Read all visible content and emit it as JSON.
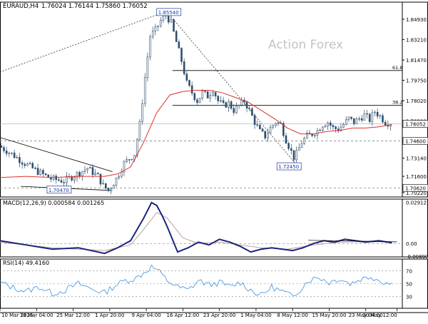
{
  "header": {
    "symbol": "EURAUD,H4",
    "ohlc": "1.76024 1.76144 1.75860 1.76052"
  },
  "watermark": "Action Forex",
  "chart_data": [
    {
      "type": "candlestick",
      "panel": "price",
      "ylim": [
        1.6985,
        1.8638
      ],
      "y_ticks": [
        "1.84930",
        "1.83210",
        "1.81470",
        "1.79750",
        "1.78020",
        "1.76290",
        "1.74560",
        "1.73140",
        "1.71600",
        "1.70220"
      ],
      "y_ticks_values": [
        1.8493,
        1.8321,
        1.8147,
        1.7975,
        1.7802,
        1.7629,
        1.7456,
        1.7314,
        1.716,
        1.7022
      ],
      "price_label": "1.76052",
      "price": 1.76052,
      "levels": [
        {
          "label": "1.74600",
          "value": 1.746,
          "style": "dashed"
        },
        {
          "label": "1.70620",
          "value": 1.7062,
          "style": "dashed"
        }
      ],
      "fib_levels": [
        {
          "label": "61.8",
          "value": 1.8058
        },
        {
          "label": "38.2",
          "value": 1.7762
        }
      ],
      "annotations": [
        {
          "label": "1.85540",
          "value": 1.8554
        },
        {
          "label": "1.72450",
          "value": 1.7245
        },
        {
          "label": "1.70470",
          "value": 1.7047
        }
      ],
      "close_path": [
        [
          0,
          1.742
        ],
        [
          5,
          1.735
        ],
        [
          10,
          1.727
        ],
        [
          15,
          1.72
        ],
        [
          20,
          1.714
        ],
        [
          25,
          1.712
        ],
        [
          30,
          1.718
        ],
        [
          34,
          1.723
        ],
        [
          38,
          1.716
        ],
        [
          40,
          1.708
        ],
        [
          42,
          1.704
        ],
        [
          45,
          1.714
        ],
        [
          48,
          1.727
        ],
        [
          52,
          1.735
        ],
        [
          54,
          1.76
        ],
        [
          56,
          1.8
        ],
        [
          58,
          1.835
        ],
        [
          60,
          1.84
        ],
        [
          62,
          1.848
        ],
        [
          64,
          1.853
        ],
        [
          66,
          1.846
        ],
        [
          68,
          1.83
        ],
        [
          70,
          1.814
        ],
        [
          72,
          1.795
        ],
        [
          74,
          1.787
        ],
        [
          76,
          1.78
        ],
        [
          78,
          1.787
        ],
        [
          80,
          1.784
        ],
        [
          82,
          1.79
        ],
        [
          84,
          1.78
        ],
        [
          86,
          1.776
        ],
        [
          88,
          1.778
        ],
        [
          90,
          1.772
        ],
        [
          92,
          1.776
        ],
        [
          94,
          1.78
        ],
        [
          96,
          1.772
        ],
        [
          98,
          1.762
        ],
        [
          100,
          1.754
        ],
        [
          102,
          1.75
        ],
        [
          104,
          1.757
        ],
        [
          106,
          1.762
        ],
        [
          108,
          1.76
        ],
        [
          110,
          1.747
        ],
        [
          112,
          1.737
        ],
        [
          113,
          1.732
        ],
        [
          114,
          1.735
        ],
        [
          116,
          1.745
        ],
        [
          118,
          1.75
        ],
        [
          120,
          1.752
        ],
        [
          122,
          1.755
        ],
        [
          124,
          1.76
        ],
        [
          126,
          1.762
        ],
        [
          128,
          1.757
        ],
        [
          130,
          1.756
        ],
        [
          132,
          1.76
        ],
        [
          134,
          1.765
        ],
        [
          136,
          1.762
        ],
        [
          138,
          1.765
        ],
        [
          140,
          1.768
        ],
        [
          142,
          1.764
        ],
        [
          144,
          1.771
        ],
        [
          146,
          1.767
        ],
        [
          148,
          1.762
        ],
        [
          150,
          1.761
        ]
      ],
      "ma_path": [
        [
          0,
          1.715
        ],
        [
          10,
          1.716
        ],
        [
          20,
          1.715
        ],
        [
          30,
          1.716
        ],
        [
          40,
          1.716
        ],
        [
          45,
          1.718
        ],
        [
          50,
          1.724
        ],
        [
          55,
          1.745
        ],
        [
          60,
          1.77
        ],
        [
          65,
          1.785
        ],
        [
          70,
          1.788
        ],
        [
          75,
          1.789
        ],
        [
          80,
          1.789
        ],
        [
          85,
          1.787
        ],
        [
          90,
          1.783
        ],
        [
          95,
          1.779
        ],
        [
          100,
          1.772
        ],
        [
          105,
          1.765
        ],
        [
          110,
          1.757
        ],
        [
          115,
          1.752
        ],
        [
          120,
          1.752
        ],
        [
          125,
          1.754
        ],
        [
          130,
          1.755
        ],
        [
          135,
          1.757
        ],
        [
          140,
          1.757
        ],
        [
          145,
          1.758
        ],
        [
          150,
          1.76
        ]
      ],
      "series": [
        {
          "name": "",
          "color": "#2f4f6f",
          "role": "price"
        },
        {
          "name": "",
          "color": "#e03030",
          "role": "moving-average"
        }
      ]
    },
    {
      "type": "line",
      "panel": "macd",
      "title": "MACD(12,26,9) 0.000584 0.001265",
      "ylim": [
        -0.0095,
        0.0315
      ],
      "y_ticks": [
        "0.029123",
        "0.00",
        "-0.008901"
      ],
      "y_ticks_values": [
        0.029123,
        0.0,
        -0.008901
      ],
      "macd_path": [
        [
          0,
          0.002
        ],
        [
          10,
          -0.001
        ],
        [
          20,
          -0.004
        ],
        [
          30,
          -0.003
        ],
        [
          40,
          -0.007
        ],
        [
          45,
          -0.003
        ],
        [
          50,
          0.002
        ],
        [
          55,
          0.018
        ],
        [
          58,
          0.029
        ],
        [
          60,
          0.027
        ],
        [
          62,
          0.02
        ],
        [
          64,
          0.012
        ],
        [
          68,
          -0.006
        ],
        [
          72,
          -0.003
        ],
        [
          76,
          0.001
        ],
        [
          80,
          -0.001
        ],
        [
          84,
          0.003
        ],
        [
          88,
          0.001
        ],
        [
          92,
          -0.002
        ],
        [
          96,
          -0.006
        ],
        [
          100,
          -0.004
        ],
        [
          104,
          -0.003
        ],
        [
          108,
          -0.004
        ],
        [
          112,
          -0.005
        ],
        [
          116,
          -0.003
        ],
        [
          120,
          0.0
        ],
        [
          124,
          0.002
        ],
        [
          128,
          0.001
        ],
        [
          132,
          0.003
        ],
        [
          136,
          0.002
        ],
        [
          140,
          0.001
        ],
        [
          145,
          0.002
        ],
        [
          150,
          0.0005
        ]
      ],
      "signal_path": [
        [
          0,
          0.001
        ],
        [
          20,
          -0.003
        ],
        [
          40,
          -0.005
        ],
        [
          50,
          -0.001
        ],
        [
          55,
          0.01
        ],
        [
          60,
          0.022
        ],
        [
          64,
          0.018
        ],
        [
          70,
          0.004
        ],
        [
          76,
          0.0
        ],
        [
          84,
          0.001
        ],
        [
          92,
          -0.001
        ],
        [
          100,
          -0.003
        ],
        [
          110,
          -0.004
        ],
        [
          120,
          -0.001
        ],
        [
          130,
          0.001
        ],
        [
          140,
          0.0013
        ],
        [
          150,
          0.0012
        ]
      ],
      "series": [
        {
          "name": "",
          "color": "#1a237e",
          "role": "macd"
        },
        {
          "name": "",
          "color": "#c0a0a0",
          "role": "signal"
        }
      ]
    },
    {
      "type": "line",
      "panel": "rsi",
      "title": "RSI(14) 49.4160",
      "ylim": [
        12,
        88
      ],
      "y_ticks": [
        "70",
        "50",
        "30"
      ],
      "y_ticks_values": [
        70,
        50,
        30
      ],
      "rsi_path": [
        [
          0,
          52
        ],
        [
          5,
          44
        ],
        [
          10,
          38
        ],
        [
          15,
          45
        ],
        [
          20,
          35
        ],
        [
          25,
          40
        ],
        [
          30,
          50
        ],
        [
          35,
          42
        ],
        [
          40,
          36
        ],
        [
          44,
          47
        ],
        [
          48,
          55
        ],
        [
          52,
          58
        ],
        [
          56,
          70
        ],
        [
          58,
          76
        ],
        [
          60,
          72
        ],
        [
          64,
          55
        ],
        [
          68,
          45
        ],
        [
          72,
          40
        ],
        [
          76,
          55
        ],
        [
          80,
          48
        ],
        [
          84,
          52
        ],
        [
          88,
          45
        ],
        [
          92,
          52
        ],
        [
          96,
          40
        ],
        [
          100,
          32
        ],
        [
          104,
          45
        ],
        [
          108,
          38
        ],
        [
          112,
          30
        ],
        [
          115,
          42
        ],
        [
          118,
          55
        ],
        [
          122,
          60
        ],
        [
          126,
          52
        ],
        [
          130,
          58
        ],
        [
          134,
          50
        ],
        [
          138,
          57
        ],
        [
          142,
          61
        ],
        [
          146,
          54
        ],
        [
          150,
          49
        ]
      ],
      "series": [
        {
          "name": "",
          "color": "#3a8fe0",
          "role": "rsi"
        }
      ]
    }
  ],
  "x_axis": {
    "labels": [
      "10 Mar 2025",
      "18 Mar 04:00",
      "25 Mar 12:00",
      "1 Apr 20:00",
      "9 Apr 04:00",
      "16 Apr 12:00",
      "23 Apr 20:00",
      "1 May 04:00",
      "8 May 12:00",
      "15 May 20:00",
      "23 May 04:00",
      "30 May 12:00"
    ],
    "label_bars": [
      0,
      14,
      28,
      42,
      56,
      70,
      84,
      98,
      112,
      126,
      140,
      152
    ]
  },
  "colors": {
    "price": "#2f4f6f",
    "ma": "#e03030",
    "macd": "#1a237e",
    "signal": "#c0a0a0",
    "rsi": "#3a8fe0",
    "axis": "#000000",
    "grid_dash": "#808080",
    "watermark": "#c0c4c8"
  }
}
